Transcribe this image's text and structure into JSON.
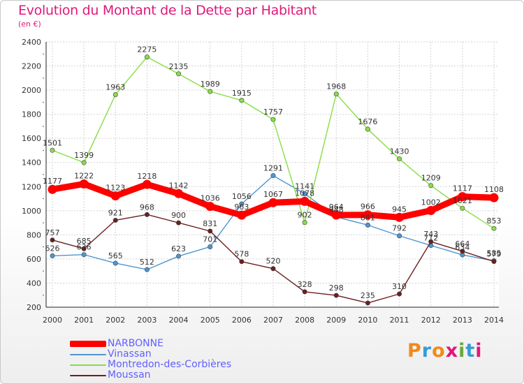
{
  "title": "Evolution du Montant de la Dette par Habitant",
  "unit": "(en €)",
  "logo": {
    "text": "Proxiti",
    "colors": [
      "#f08a1c",
      "#3a9ad8",
      "#f08a1c",
      "#e0187a",
      "#6aa83a",
      "#3a9ad8",
      "#e0187a"
    ]
  },
  "chart_data": {
    "type": "line",
    "x": [
      "2000",
      "2001",
      "2002",
      "2003",
      "2004",
      "2005",
      "2006",
      "2007",
      "2008",
      "2009",
      "2010",
      "2011",
      "2012",
      "2013",
      "2014"
    ],
    "ylim": [
      200,
      2400
    ],
    "yticks": [
      "200",
      "400",
      "600",
      "800",
      "1000",
      "1200",
      "1400",
      "1600",
      "1800",
      "2000",
      "2200",
      "2400"
    ],
    "grid": true,
    "legend_position": "bottom-left",
    "series": [
      {
        "name": "NARBONNE",
        "color": "#ff0000",
        "thick": true,
        "values": [
          1177,
          1222,
          1123,
          1218,
          1142,
          1036,
          963,
          1067,
          1078,
          964,
          966,
          945,
          1002,
          1117,
          1108
        ],
        "labels": [
          "1177",
          "1222",
          "1123",
          "1218",
          "1142",
          "1036",
          "963",
          "1067",
          "1078",
          "964",
          "966",
          "945",
          "1002",
          "1117",
          "1108"
        ]
      },
      {
        "name": "Vinassan",
        "color": "#4f95d0",
        "thick": false,
        "values": [
          626,
          636,
          565,
          512,
          623,
          701,
          1056,
          1291,
          1141,
          948,
          881,
          792,
          712,
          634,
          585
        ],
        "labels": [
          "626",
          "636",
          "565",
          "512",
          "623",
          "701",
          "1056",
          "1291",
          "1141",
          "948",
          "881",
          "792",
          "712",
          "634",
          "585"
        ]
      },
      {
        "name": "Montredon-des-Corbières",
        "color": "#88dd44",
        "thick": false,
        "values": [
          1501,
          1399,
          1963,
          2275,
          2135,
          1989,
          1915,
          1757,
          902,
          1968,
          1676,
          1430,
          1209,
          1021,
          853
        ],
        "labels": [
          "1501",
          "1399",
          "1963",
          "2275",
          "2135",
          "1989",
          "1915",
          "1757",
          "902",
          "1968",
          "1676",
          "1430",
          "1209",
          "1021",
          "853"
        ]
      },
      {
        "name": "Moussan",
        "color": "#6b1f1f",
        "thick": false,
        "values": [
          757,
          685,
          921,
          968,
          900,
          831,
          578,
          520,
          328,
          298,
          235,
          310,
          743,
          664,
          579
        ],
        "labels": [
          "757",
          "685",
          "921",
          "968",
          "900",
          "831",
          "578",
          "520",
          "328",
          "298",
          "235",
          "310",
          "743",
          "664",
          "579"
        ]
      }
    ]
  }
}
